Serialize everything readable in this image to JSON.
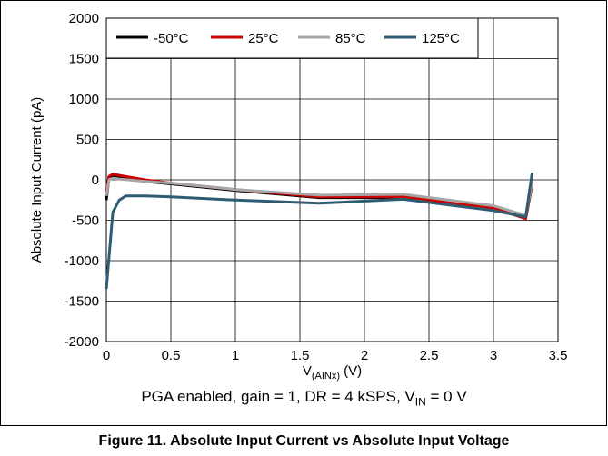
{
  "chart_data": {
    "type": "line",
    "xlabel_main": "V",
    "xlabel_sub": "(AINx)",
    "xlabel_unit": " (V)",
    "ylabel": "Absolute Input Current (pA)",
    "xlim": [
      0,
      3.5
    ],
    "ylim": [
      -2000,
      2000
    ],
    "xticks": [
      0,
      0.5,
      1,
      1.5,
      2,
      2.5,
      3,
      3.5
    ],
    "xtick_labels": [
      "0",
      "0.5",
      "1",
      "1.5",
      "2",
      "2.5",
      "3",
      "3.5"
    ],
    "yticks": [
      2000,
      1500,
      1000,
      500,
      0,
      -500,
      -1000,
      -1500,
      -2000
    ],
    "ytick_labels": [
      "2000",
      "1500",
      "1000",
      "500",
      "0",
      "-500",
      "-1000",
      "-1500",
      "-2000"
    ],
    "grid": true,
    "legend_position": "top-left",
    "series": [
      {
        "name": "-50°C",
        "color": "#000000",
        "x": [
          0,
          0.02,
          0.05,
          0.1,
          0.3,
          0.5,
          1.0,
          1.65,
          2.3,
          3.0,
          3.25,
          3.3
        ],
        "y": [
          -250,
          20,
          40,
          30,
          -20,
          -50,
          -130,
          -220,
          -220,
          -360,
          -470,
          -60
        ]
      },
      {
        "name": "25°C",
        "color": "#cc0000",
        "x": [
          0,
          0.02,
          0.05,
          0.1,
          0.3,
          0.5,
          1.0,
          1.65,
          2.3,
          3.0,
          3.25,
          3.3
        ],
        "y": [
          -150,
          40,
          70,
          55,
          0,
          -40,
          -120,
          -210,
          -210,
          -350,
          -480,
          -50
        ]
      },
      {
        "name": "85°C",
        "color": "#a6a6a6",
        "x": [
          0,
          0.02,
          0.05,
          0.1,
          0.3,
          0.5,
          1.0,
          1.65,
          2.3,
          3.0,
          3.25,
          3.3
        ],
        "y": [
          -200,
          0,
          20,
          10,
          -20,
          -40,
          -120,
          -190,
          -180,
          -320,
          -440,
          -30
        ]
      },
      {
        "name": "125°C",
        "color": "#2e5c73",
        "x": [
          0,
          0.05,
          0.1,
          0.15,
          0.3,
          0.5,
          1.0,
          1.65,
          2.3,
          3.0,
          3.25,
          3.3
        ],
        "y": [
          -1350,
          -400,
          -250,
          -200,
          -200,
          -210,
          -250,
          -290,
          -240,
          -380,
          -460,
          90
        ]
      }
    ]
  },
  "caption": {
    "prefix": "PGA enabled, gain = 1, DR = 4 kSPS, V",
    "sub": "IN",
    "suffix": " = 0 V"
  },
  "figure_title": "Figure 11. Absolute Input Current vs Absolute Input Voltage"
}
